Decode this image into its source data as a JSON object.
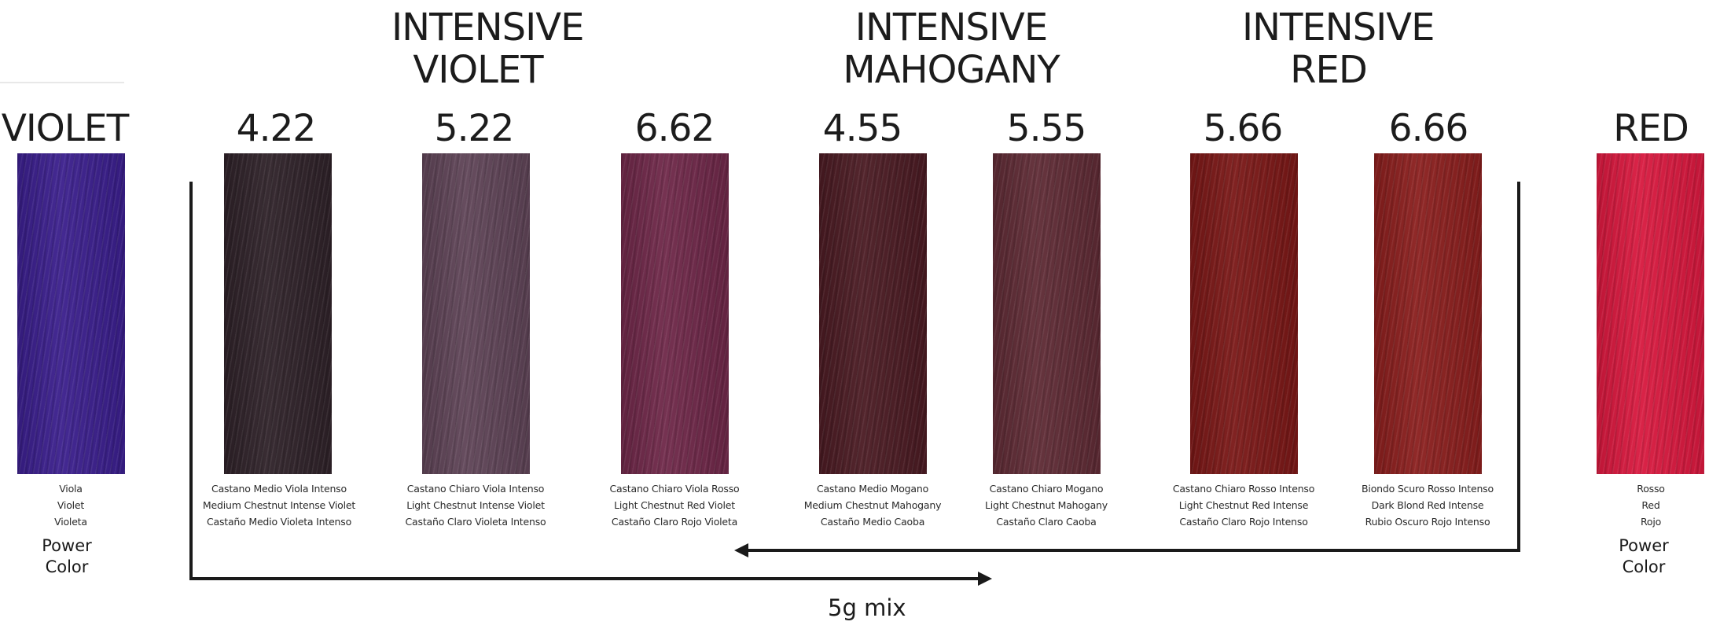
{
  "groups": {
    "violet": [
      "INTENSIVE",
      "VIOLET"
    ],
    "mahogany": [
      "INTENSIVE",
      "MAHOGANY"
    ],
    "red": [
      "INTENSIVE",
      "RED"
    ]
  },
  "swatches": [
    {
      "code": "VIOLET",
      "color": "#3a1e8c",
      "desc": [
        "Viola",
        "Violet",
        "Violeta"
      ],
      "power": [
        "Power",
        "Color"
      ]
    },
    {
      "code": "4.22",
      "color": "#2e2128",
      "desc": [
        "Castano Medio Viola Intenso",
        "Medium Chestnut Intense Violet",
        "Castaño Medio Violeta Intenso"
      ]
    },
    {
      "code": "5.22",
      "color": "#5e4356",
      "desc": [
        "Castano Chiaro Viola Intenso",
        "Light Chestnut Intense Violet",
        "Castaño Claro Violeta Intenso"
      ]
    },
    {
      "code": "6.62",
      "color": "#6e2748",
      "desc": [
        "Castano Chiaro Viola Rosso",
        "Light Chestnut Red Violet",
        "Castaño Claro Rojo Violeta"
      ]
    },
    {
      "code": "4.55",
      "color": "#4a1a22",
      "desc": [
        "Castano Medio Mogano",
        "Medium Chestnut Mahogany",
        "Castaño Medio Caoba"
      ]
    },
    {
      "code": "5.55",
      "color": "#5e2a34",
      "desc": [
        "Castano Chiaro Mogano",
        "Light Chestnut Mahogany",
        "Castaño Claro Caoba"
      ]
    },
    {
      "code": "5.66",
      "color": "#7a1716",
      "desc": [
        "Castano Chiaro Rosso Intenso",
        "Light Chestnut Red Intense",
        "Castaño Claro Rojo Intenso"
      ]
    },
    {
      "code": "6.66",
      "color": "#8a1e1d",
      "desc": [
        "Biondo Scuro Rosso Intenso",
        "Dark Blond Red Intense",
        "Rubio Oscuro Rojo Intenso"
      ]
    },
    {
      "code": "RED",
      "color": "#d8183e",
      "desc": [
        "Rosso",
        "Red",
        "Rojo"
      ],
      "power": [
        "Power",
        "Color"
      ]
    }
  ],
  "mix_label": "5g mix",
  "colors": {
    "text": "#1c1c1c",
    "arrow": "#1a1a1a",
    "background": "#ffffff"
  }
}
